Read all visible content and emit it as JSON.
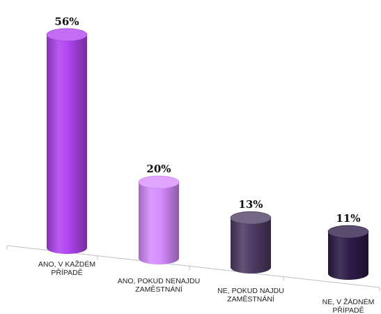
{
  "chart_data": {
    "type": "bar",
    "style": "3d-cylinder",
    "title": "",
    "xlabel": "",
    "ylabel": "",
    "ylim": [
      0,
      60
    ],
    "grid": false,
    "legend": "none",
    "categories": [
      [
        "ANO, V KAŽDÉM",
        "PŘÍPADĚ"
      ],
      [
        "ANO, POKUD NENAJDU",
        "ZAMĚSTNÁNÍ"
      ],
      [
        "NE, POKUD NAJDU",
        "ZAMĚSTNÁNÍ"
      ],
      [
        "NE, V ŽÁDNÉM",
        "PŘÍPADĚ"
      ]
    ],
    "values": [
      56,
      20,
      13,
      11
    ],
    "data_labels": [
      "56%",
      "20%",
      "13%",
      "11%"
    ],
    "colors": [
      "#b144f0",
      "#d78cff",
      "#4d3b63",
      "#2c1b47"
    ]
  }
}
